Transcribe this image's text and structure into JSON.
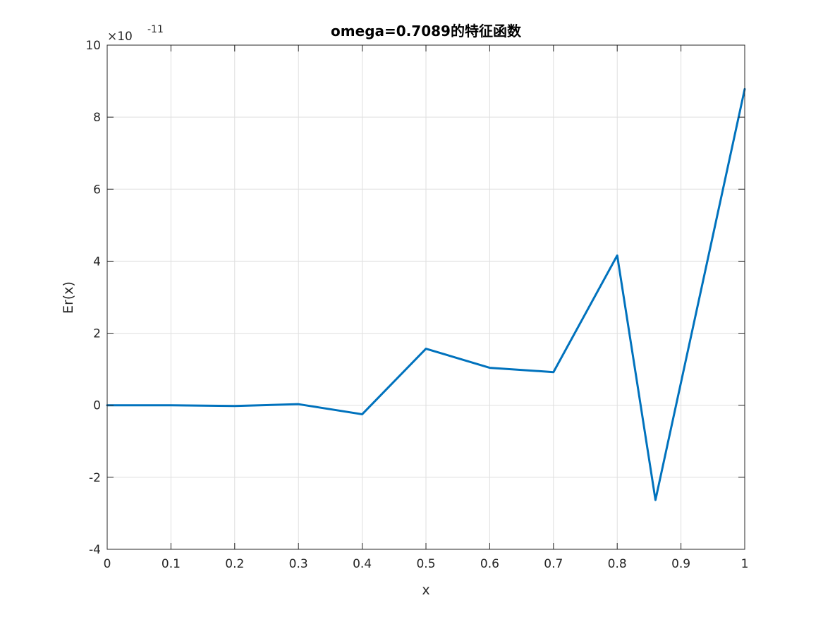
{
  "chart_data": {
    "type": "line",
    "title": "omega=0.7089的特征函数",
    "xlabel": "x",
    "ylabel": "Er(x)",
    "xlim": [
      0,
      1
    ],
    "ylim": [
      -4,
      10
    ],
    "y_exponent_label": "×10",
    "y_exponent_power": "-11",
    "xticks": [
      "0",
      "0.1",
      "0.2",
      "0.3",
      "0.4",
      "0.5",
      "0.6",
      "0.7",
      "0.8",
      "0.9",
      "1"
    ],
    "xtick_values": [
      0,
      0.1,
      0.2,
      0.3,
      0.4,
      0.5,
      0.6,
      0.7,
      0.8,
      0.9,
      1.0
    ],
    "yticks": [
      "-4",
      "-2",
      "0",
      "2",
      "4",
      "6",
      "8",
      "10"
    ],
    "ytick_values": [
      -4,
      -2,
      0,
      2,
      4,
      6,
      8,
      10
    ],
    "grid": true,
    "series": [
      {
        "color": "#0072bd",
        "x": [
          0,
          0.1,
          0.2,
          0.3,
          0.4,
          0.5,
          0.6,
          0.7,
          0.8,
          0.86,
          1.0
        ],
        "y": [
          0,
          0,
          -0.02,
          0.03,
          -0.25,
          1.57,
          1.04,
          0.92,
          4.16,
          -2.63,
          8.78
        ]
      }
    ]
  }
}
